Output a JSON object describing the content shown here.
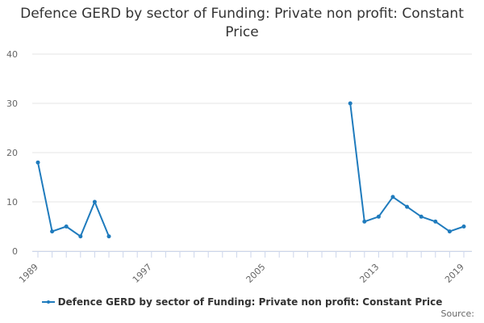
{
  "chart_data": {
    "type": "line",
    "title": "Defence GERD by sector of Funding: Private non profit: Constant Price",
    "xlabel": "",
    "ylabel": "",
    "xlim": [
      1989,
      2019
    ],
    "ylim": [
      0,
      40
    ],
    "y_ticks": [
      "0",
      "10",
      "20",
      "30",
      "40"
    ],
    "x_ticks": [
      "1989",
      "1997",
      "2005",
      "2013",
      "2019"
    ],
    "grid": true,
    "legend_position": "bottom",
    "series": [
      {
        "name": "Defence GERD by sector of Funding: Private non profit: Constant Price",
        "color": "#1f7bbd",
        "points": [
          {
            "x": 1989,
            "y": 18
          },
          {
            "x": 1990,
            "y": 4
          },
          {
            "x": 1991,
            "y": 5
          },
          {
            "x": 1992,
            "y": 3
          },
          {
            "x": 1993,
            "y": 10
          },
          {
            "x": 1994,
            "y": 3
          },
          {
            "x": 1995,
            "y": null
          },
          {
            "x": 1996,
            "y": null
          },
          {
            "x": 1997,
            "y": null
          },
          {
            "x": 1998,
            "y": null
          },
          {
            "x": 1999,
            "y": null
          },
          {
            "x": 2000,
            "y": null
          },
          {
            "x": 2001,
            "y": null
          },
          {
            "x": 2002,
            "y": null
          },
          {
            "x": 2003,
            "y": null
          },
          {
            "x": 2004,
            "y": null
          },
          {
            "x": 2005,
            "y": null
          },
          {
            "x": 2006,
            "y": null
          },
          {
            "x": 2007,
            "y": null
          },
          {
            "x": 2008,
            "y": null
          },
          {
            "x": 2009,
            "y": null
          },
          {
            "x": 2010,
            "y": null
          },
          {
            "x": 2011,
            "y": 30
          },
          {
            "x": 2012,
            "y": 6
          },
          {
            "x": 2013,
            "y": 7
          },
          {
            "x": 2014,
            "y": 11
          },
          {
            "x": 2015,
            "y": 9
          },
          {
            "x": 2016,
            "y": 7
          },
          {
            "x": 2017,
            "y": 6
          },
          {
            "x": 2018,
            "y": 4
          },
          {
            "x": 2019,
            "y": 5
          }
        ]
      }
    ]
  },
  "legend": {
    "label": "Defence GERD by sector of Funding: Private non profit: Constant Price"
  },
  "source": {
    "label": "Source:"
  }
}
